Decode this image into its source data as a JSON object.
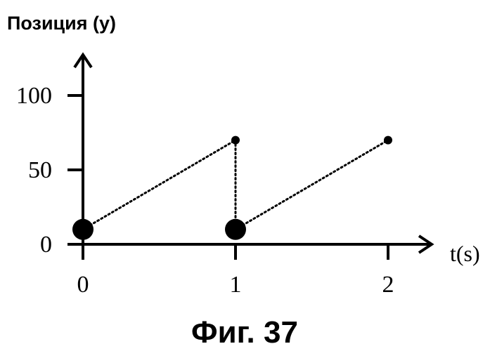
{
  "chart_data": {
    "type": "line",
    "ylabel": "Позиция (y)",
    "xlabel": "t(s)",
    "x_ticks": [
      "0",
      "1",
      "2"
    ],
    "y_ticks": [
      "0",
      "50",
      "100"
    ],
    "xlim": [
      0,
      2.3
    ],
    "ylim": [
      0,
      120
    ],
    "segments": [
      {
        "from": [
          0,
          10
        ],
        "to": [
          1,
          70
        ],
        "style": "dotted"
      },
      {
        "from": [
          1,
          70
        ],
        "to": [
          1,
          10
        ],
        "style": "dotted"
      },
      {
        "from": [
          1,
          10
        ],
        "to": [
          2,
          70
        ],
        "style": "dotted"
      }
    ],
    "points": [
      {
        "x": 0,
        "y": 10,
        "marker": "large"
      },
      {
        "x": 1,
        "y": 10,
        "marker": "large"
      },
      {
        "x": 1,
        "y": 70,
        "marker": "small"
      },
      {
        "x": 2,
        "y": 70,
        "marker": "small"
      }
    ],
    "grid": false,
    "legend": "none"
  },
  "caption": "Фиг. 37"
}
